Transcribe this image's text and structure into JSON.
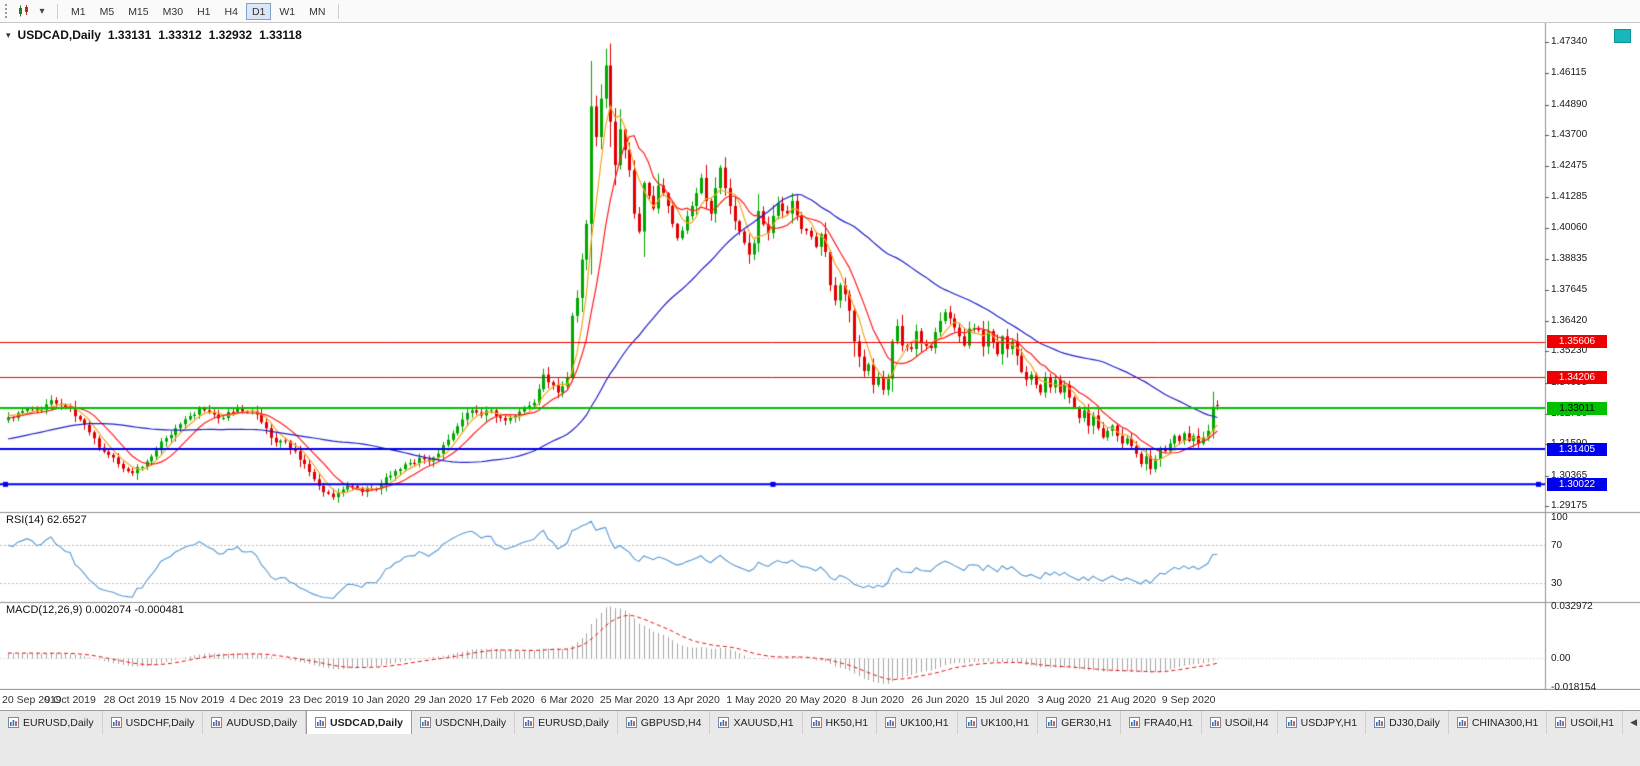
{
  "toolbar": {
    "timeframes": [
      "M1",
      "M5",
      "M15",
      "M30",
      "H1",
      "H4",
      "D1",
      "W1",
      "MN"
    ],
    "active_timeframe": "D1"
  },
  "chart": {
    "symbol_title": "USDCAD,Daily",
    "ohlc": {
      "open": "1.33131",
      "high": "1.33312",
      "low": "1.32932",
      "close": "1.33118"
    },
    "rsi_label": "RSI(14) 62.6527",
    "macd_label": "MACD(12,26,9) 0.002074 -0.000481"
  },
  "chart_data": {
    "type": "candlestick",
    "symbol": "USDCAD",
    "timeframe": "Daily",
    "title": "USDCAD,Daily 1.33131 1.33312 1.32932 1.33118",
    "candles_count": 254,
    "last_candle": {
      "open": 1.33131,
      "high": 1.33312,
      "low": 1.32932,
      "close": 1.33118
    },
    "y_axis": {
      "min": 1.29175,
      "max": 1.4734,
      "tick_labels": [
        "1.47340",
        "1.46115",
        "1.44890",
        "1.43700",
        "1.42475",
        "1.41285",
        "1.40060",
        "1.38835",
        "1.37645",
        "1.36420",
        "1.35230",
        "1.34005",
        "1.32780",
        "1.31590",
        "1.30365",
        "1.29175"
      ]
    },
    "x_axis": {
      "labels": [
        "20 Sep 2019",
        "9 Oct 2019",
        "28 Oct 2019",
        "15 Nov 2019",
        "4 Dec 2019",
        "23 Dec 2019",
        "10 Jan 2020",
        "29 Jan 2020",
        "17 Feb 2020",
        "6 Mar 2020",
        "25 Mar 2020",
        "13 Apr 2020",
        "1 May 2020",
        "20 May 2020",
        "8 Jun 2020",
        "26 Jun 2020",
        "15 Jul 2020",
        "3 Aug 2020",
        "21 Aug 2020",
        "9 Sep 2020"
      ],
      "candles_per_label": 13
    },
    "horizontal_levels": [
      {
        "price": 1.35606,
        "label": "1.35606",
        "color": "#ee0000",
        "width": 1,
        "tag_text_color": "#ffffff"
      },
      {
        "price": 1.34206,
        "label": "1.34206",
        "color": "#ee0000",
        "width": 1,
        "tag_text_color": "#ffffff"
      },
      {
        "price": 1.33011,
        "label": "1.33011",
        "color": "#00c000",
        "width": 2,
        "tag_text_color": "#000000"
      },
      {
        "price": 1.31405,
        "label": "1.31405",
        "color": "#0000ee",
        "width": 2,
        "tag_text_color": "#ffffff"
      },
      {
        "price": 1.30022,
        "label": "1.30022",
        "color": "#0000ee",
        "width": 2,
        "tag_text_color": "#ffffff",
        "selected": true
      }
    ],
    "moving_averages": [
      {
        "period": 5,
        "color": "#f5a623"
      },
      {
        "period": 10,
        "color": "#ff2020"
      },
      {
        "period": 45,
        "color": "#2222cc"
      }
    ],
    "candle_up_color": "#00a800",
    "candle_down_color": "#e00000",
    "price_anchors": [
      [
        0,
        1.3265
      ],
      [
        2,
        1.3282
      ],
      [
        4,
        1.33
      ],
      [
        6,
        1.3288
      ],
      [
        9,
        1.3332
      ],
      [
        11,
        1.3312
      ],
      [
        13,
        1.33
      ],
      [
        15,
        1.3256
      ],
      [
        17,
        1.3206
      ],
      [
        20,
        1.313
      ],
      [
        23,
        1.3082
      ],
      [
        26,
        1.3046
      ],
      [
        29,
        1.3092
      ],
      [
        32,
        1.317
      ],
      [
        35,
        1.3222
      ],
      [
        38,
        1.327
      ],
      [
        40,
        1.3302
      ],
      [
        42,
        1.3282
      ],
      [
        45,
        1.3262
      ],
      [
        48,
        1.3302
      ],
      [
        50,
        1.3286
      ],
      [
        52,
        1.3276
      ],
      [
        54,
        1.3222
      ],
      [
        56,
        1.3166
      ],
      [
        58,
        1.3172
      ],
      [
        60,
        1.3132
      ],
      [
        62,
        1.3082
      ],
      [
        64,
        1.3022
      ],
      [
        65,
        1.2996
      ],
      [
        67,
        1.2966
      ],
      [
        68,
        1.2952
      ],
      [
        70,
        1.2982
      ],
      [
        72,
        1.2996
      ],
      [
        74,
        1.2972
      ],
      [
        76,
        1.2986
      ],
      [
        78,
        1.3002
      ],
      [
        80,
        1.3036
      ],
      [
        82,
        1.3062
      ],
      [
        84,
        1.3086
      ],
      [
        86,
        1.3106
      ],
      [
        88,
        1.3092
      ],
      [
        90,
        1.3122
      ],
      [
        91,
        1.3156
      ],
      [
        93,
        1.3202
      ],
      [
        95,
        1.3256
      ],
      [
        97,
        1.3292
      ],
      [
        99,
        1.3272
      ],
      [
        101,
        1.3292
      ],
      [
        103,
        1.3262
      ],
      [
        104,
        1.3252
      ],
      [
        106,
        1.3272
      ],
      [
        108,
        1.3302
      ],
      [
        110,
        1.3322
      ],
      [
        112,
        1.3432
      ],
      [
        113,
        1.3402
      ],
      [
        115,
        1.3362
      ],
      [
        116,
        1.3386
      ],
      [
        117,
        1.3422
      ],
      [
        118,
        1.3662
      ],
      [
        119,
        1.3732
      ],
      [
        120,
        1.3882
      ],
      [
        121,
        1.4022
      ],
      [
        122,
        1.4482
      ],
      [
        123,
        1.4362
      ],
      [
        124,
        1.4512
      ],
      [
        125,
        1.4642
      ],
      [
        126,
        1.4422
      ],
      [
        127,
        1.4252
      ],
      [
        128,
        1.4392
      ],
      [
        129,
        1.4312
      ],
      [
        130,
        1.4232
      ],
      [
        131,
        1.4062
      ],
      [
        132,
        1.3992
      ],
      [
        133,
        1.4182
      ],
      [
        134,
        1.4132
      ],
      [
        135,
        1.4082
      ],
      [
        136,
        1.4172
      ],
      [
        137,
        1.4142
      ],
      [
        138,
        1.4092
      ],
      [
        139,
        1.4022
      ],
      [
        140,
        1.3966
      ],
      [
        141,
        1.3996
      ],
      [
        142,
        1.4052
      ],
      [
        143,
        1.4092
      ],
      [
        144,
        1.4142
      ],
      [
        145,
        1.4202
      ],
      [
        146,
        1.4112
      ],
      [
        147,
        1.4062
      ],
      [
        148,
        1.4162
      ],
      [
        149,
        1.4242
      ],
      [
        150,
        1.4162
      ],
      [
        151,
        1.4092
      ],
      [
        153,
        1.3992
      ],
      [
        155,
        1.3902
      ],
      [
        156,
        1.3946
      ],
      [
        157,
        1.4072
      ],
      [
        159,
        1.3986
      ],
      [
        161,
        1.4102
      ],
      [
        163,
        1.4062
      ],
      [
        164,
        1.4112
      ],
      [
        166,
        1.4002
      ],
      [
        168,
        1.3972
      ],
      [
        169,
        1.3932
      ],
      [
        170,
        1.3982
      ],
      [
        171,
        1.3912
      ],
      [
        172,
        1.3782
      ],
      [
        173,
        1.3722
      ],
      [
        174,
        1.3782
      ],
      [
        175,
        1.3746
      ],
      [
        176,
        1.3682
      ],
      [
        177,
        1.3562
      ],
      [
        178,
        1.3502
      ],
      [
        179,
        1.3446
      ],
      [
        180,
        1.3472
      ],
      [
        181,
        1.3392
      ],
      [
        182,
        1.3422
      ],
      [
        183,
        1.3372
      ],
      [
        184,
        1.3416
      ],
      [
        185,
        1.3562
      ],
      [
        186,
        1.3622
      ],
      [
        187,
        1.3546
      ],
      [
        189,
        1.3532
      ],
      [
        190,
        1.3602
      ],
      [
        191,
        1.3552
      ],
      [
        193,
        1.3536
      ],
      [
        195,
        1.3642
      ],
      [
        196,
        1.3676
      ],
      [
        197,
        1.3652
      ],
      [
        199,
        1.3582
      ],
      [
        200,
        1.3546
      ],
      [
        201,
        1.3612
      ],
      [
        203,
        1.3606
      ],
      [
        204,
        1.3542
      ],
      [
        205,
        1.3602
      ],
      [
        207,
        1.3512
      ],
      [
        208,
        1.3582
      ],
      [
        209,
        1.3532
      ],
      [
        210,
        1.3562
      ],
      [
        211,
        1.3506
      ],
      [
        212,
        1.3442
      ],
      [
        213,
        1.3412
      ],
      [
        214,
        1.3432
      ],
      [
        215,
        1.3392
      ],
      [
        216,
        1.3362
      ],
      [
        217,
        1.3422
      ],
      [
        218,
        1.3382
      ],
      [
        219,
        1.3412
      ],
      [
        220,
        1.3362
      ],
      [
        221,
        1.3392
      ],
      [
        222,
        1.3342
      ],
      [
        223,
        1.3302
      ],
      [
        224,
        1.3262
      ],
      [
        225,
        1.3292
      ],
      [
        226,
        1.3232
      ],
      [
        227,
        1.3272
      ],
      [
        228,
        1.3222
      ],
      [
        229,
        1.3186
      ],
      [
        230,
        1.3212
      ],
      [
        231,
        1.3232
      ],
      [
        232,
        1.3192
      ],
      [
        233,
        1.3162
      ],
      [
        234,
        1.3182
      ],
      [
        235,
        1.3152
      ],
      [
        236,
        1.3122
      ],
      [
        237,
        1.3082
      ],
      [
        238,
        1.3112
      ],
      [
        239,
        1.3062
      ],
      [
        240,
        1.3102
      ],
      [
        241,
        1.3142
      ],
      [
        242,
        1.3132
      ],
      [
        243,
        1.3162
      ],
      [
        244,
        1.3192
      ],
      [
        245,
        1.3172
      ],
      [
        246,
        1.3202
      ],
      [
        247,
        1.3172
      ],
      [
        248,
        1.3192
      ],
      [
        249,
        1.3162
      ],
      [
        250,
        1.3186
      ],
      [
        251,
        1.3212
      ],
      [
        252,
        1.3306
      ],
      [
        253,
        1.33118
      ]
    ],
    "rsi": {
      "period": 14,
      "current": 62.6527,
      "levels": [
        100,
        70,
        30
      ],
      "dashed_levels": [
        70,
        30
      ],
      "scale_labels": [
        "100",
        "70",
        "30"
      ],
      "line_color": "#5b9bd5"
    },
    "macd": {
      "fast": 12,
      "slow": 26,
      "signal_period": 9,
      "current": 0.002074,
      "signal_current": -0.000481,
      "histogram_color": "#a6a6a6",
      "signal_color": "#ee1111",
      "scale_labels": [
        "0.032972",
        "0.00",
        "-0.018154"
      ],
      "scale_values": [
        0.032972,
        0,
        -0.018154
      ]
    }
  },
  "tabs": {
    "items": [
      "EURUSD,Daily",
      "USDCHF,Daily",
      "AUDUSD,Daily",
      "USDCAD,Daily",
      "USDCNH,Daily",
      "EURUSD,Daily",
      "GBPUSD,H4",
      "XAUUSD,H1",
      "HK50,H1",
      "UK100,H1",
      "UK100,H1",
      "GER30,H1",
      "FRA40,H1",
      "USOil,H4",
      "USDJPY,H1",
      "DJ30,Daily",
      "CHINA300,H1",
      "USOil,H1"
    ],
    "active_index": 3,
    "scroll_left_label": "◀"
  }
}
